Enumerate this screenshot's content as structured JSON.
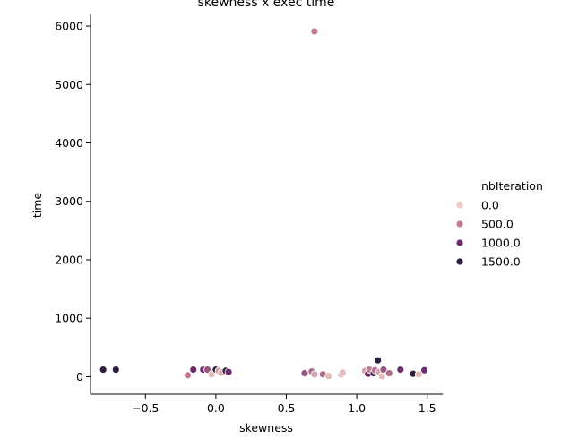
{
  "chart_data": {
    "type": "scatter",
    "title": "skewness x exec time",
    "xlabel": "skewness",
    "ylabel": "time",
    "xlim": [
      -0.89,
      1.61
    ],
    "ylim": [
      -300,
      6200
    ],
    "xticks": [
      -0.5,
      0.0,
      0.5,
      1.0,
      1.5
    ],
    "xtick_labels": [
      "−0.5",
      "0.0",
      "0.5",
      "1.0",
      "1.5"
    ],
    "yticks": [
      0,
      1000,
      2000,
      3000,
      4000,
      5000,
      6000
    ],
    "ytick_labels": [
      "0",
      "1000",
      "2000",
      "3000",
      "4000",
      "5000",
      "6000"
    ],
    "grid": false,
    "legend": {
      "title": "nbIteration",
      "placement": "right",
      "entries": [
        {
          "label": "0.0",
          "color": "#ebcdc3"
        },
        {
          "label": "500.0",
          "color": "#c07a92"
        },
        {
          "label": "1000.0",
          "color": "#6b2d6a"
        },
        {
          "label": "1500.0",
          "color": "#2d1e3e"
        }
      ]
    },
    "hue_range": [
      0,
      1800
    ],
    "points": [
      {
        "x": 0.7,
        "y": 5910,
        "hue": 500
      },
      {
        "x": -0.8,
        "y": 120,
        "hue": 1500
      },
      {
        "x": -0.71,
        "y": 120,
        "hue": 1500
      },
      {
        "x": -0.16,
        "y": 120,
        "hue": 1000
      },
      {
        "x": -0.09,
        "y": 120,
        "hue": 1000
      },
      {
        "x": -0.06,
        "y": 120,
        "hue": 750
      },
      {
        "x": -0.2,
        "y": 25,
        "hue": 500
      },
      {
        "x": -0.03,
        "y": 40,
        "hue": 100
      },
      {
        "x": 0.0,
        "y": 120,
        "hue": 1500
      },
      {
        "x": 0.02,
        "y": 100,
        "hue": 300
      },
      {
        "x": 0.04,
        "y": 70,
        "hue": 250
      },
      {
        "x": 0.07,
        "y": 100,
        "hue": 1500
      },
      {
        "x": 0.09,
        "y": 80,
        "hue": 1000
      },
      {
        "x": 0.63,
        "y": 60,
        "hue": 750
      },
      {
        "x": 0.68,
        "y": 90,
        "hue": 600
      },
      {
        "x": 0.7,
        "y": 40,
        "hue": 250
      },
      {
        "x": 0.76,
        "y": 40,
        "hue": 600
      },
      {
        "x": 0.8,
        "y": 10,
        "hue": 100
      },
      {
        "x": 0.89,
        "y": 40,
        "hue": 200
      },
      {
        "x": 0.9,
        "y": 70,
        "hue": 100
      },
      {
        "x": 1.06,
        "y": 100,
        "hue": 300
      },
      {
        "x": 1.08,
        "y": 50,
        "hue": 1000
      },
      {
        "x": 1.09,
        "y": 120,
        "hue": 500
      },
      {
        "x": 1.12,
        "y": 60,
        "hue": 1500
      },
      {
        "x": 1.13,
        "y": 110,
        "hue": 600
      },
      {
        "x": 1.15,
        "y": 280,
        "hue": 1500
      },
      {
        "x": 1.16,
        "y": 80,
        "hue": 250
      },
      {
        "x": 1.18,
        "y": 10,
        "hue": 100
      },
      {
        "x": 1.19,
        "y": 120,
        "hue": 750
      },
      {
        "x": 1.23,
        "y": 60,
        "hue": 600
      },
      {
        "x": 1.31,
        "y": 120,
        "hue": 1000
      },
      {
        "x": 1.4,
        "y": 50,
        "hue": 1500
      },
      {
        "x": 1.44,
        "y": 40,
        "hue": 100
      },
      {
        "x": 1.48,
        "y": 110,
        "hue": 1000
      }
    ]
  }
}
